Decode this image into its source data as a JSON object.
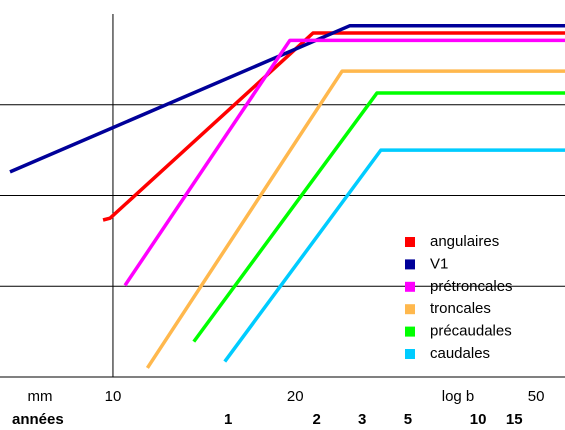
{
  "chart_data": {
    "type": "line",
    "x_label": "mm",
    "y_label": "log b",
    "secondary_x_label": "années",
    "xscale": "log",
    "xlim": [
      6.76,
      55.8
    ],
    "xticks": [
      10,
      20,
      50
    ],
    "year_ticks": [
      {
        "value": 15.5,
        "label": "1"
      },
      {
        "value": 21.7,
        "label": "2"
      },
      {
        "value": 25.8,
        "label": "3"
      },
      {
        "value": 30.7,
        "label": "5"
      },
      {
        "value": 40.1,
        "label": "10"
      },
      {
        "value": 46.0,
        "label": "15"
      }
    ],
    "year_color": "#ff0000",
    "ylim": [
      0,
      4
    ],
    "yticks": [
      1,
      2,
      3
    ],
    "grid": true,
    "legend": "lower right",
    "series": [
      {
        "name": "angulaires",
        "color": "#ff0000",
        "x": [
          9.63,
          9.89,
          21.4,
          55.8
        ],
        "values": [
          1.73,
          1.75,
          3.79,
          3.79
        ]
      },
      {
        "name": "V1",
        "color": "#000099",
        "x": [
          6.76,
          24.6,
          55.8
        ],
        "values": [
          2.26,
          3.87,
          3.87
        ]
      },
      {
        "name": "prétroncales",
        "color": "#ff00ff",
        "x": [
          10.47,
          19.6,
          55.8
        ],
        "values": [
          1.01,
          3.71,
          3.71
        ]
      },
      {
        "name": "troncales",
        "color": "#ffb84d",
        "x": [
          11.4,
          23.9,
          55.8
        ],
        "values": [
          0.1,
          3.37,
          3.37
        ]
      },
      {
        "name": "précaudales",
        "color": "#00ff00",
        "x": [
          13.6,
          27.3,
          55.8
        ],
        "values": [
          0.39,
          3.13,
          3.13
        ]
      },
      {
        "name": "caudales",
        "color": "#00ccff",
        "x": [
          15.3,
          27.7,
          55.8
        ],
        "values": [
          0.17,
          2.5,
          2.5
        ]
      }
    ]
  }
}
